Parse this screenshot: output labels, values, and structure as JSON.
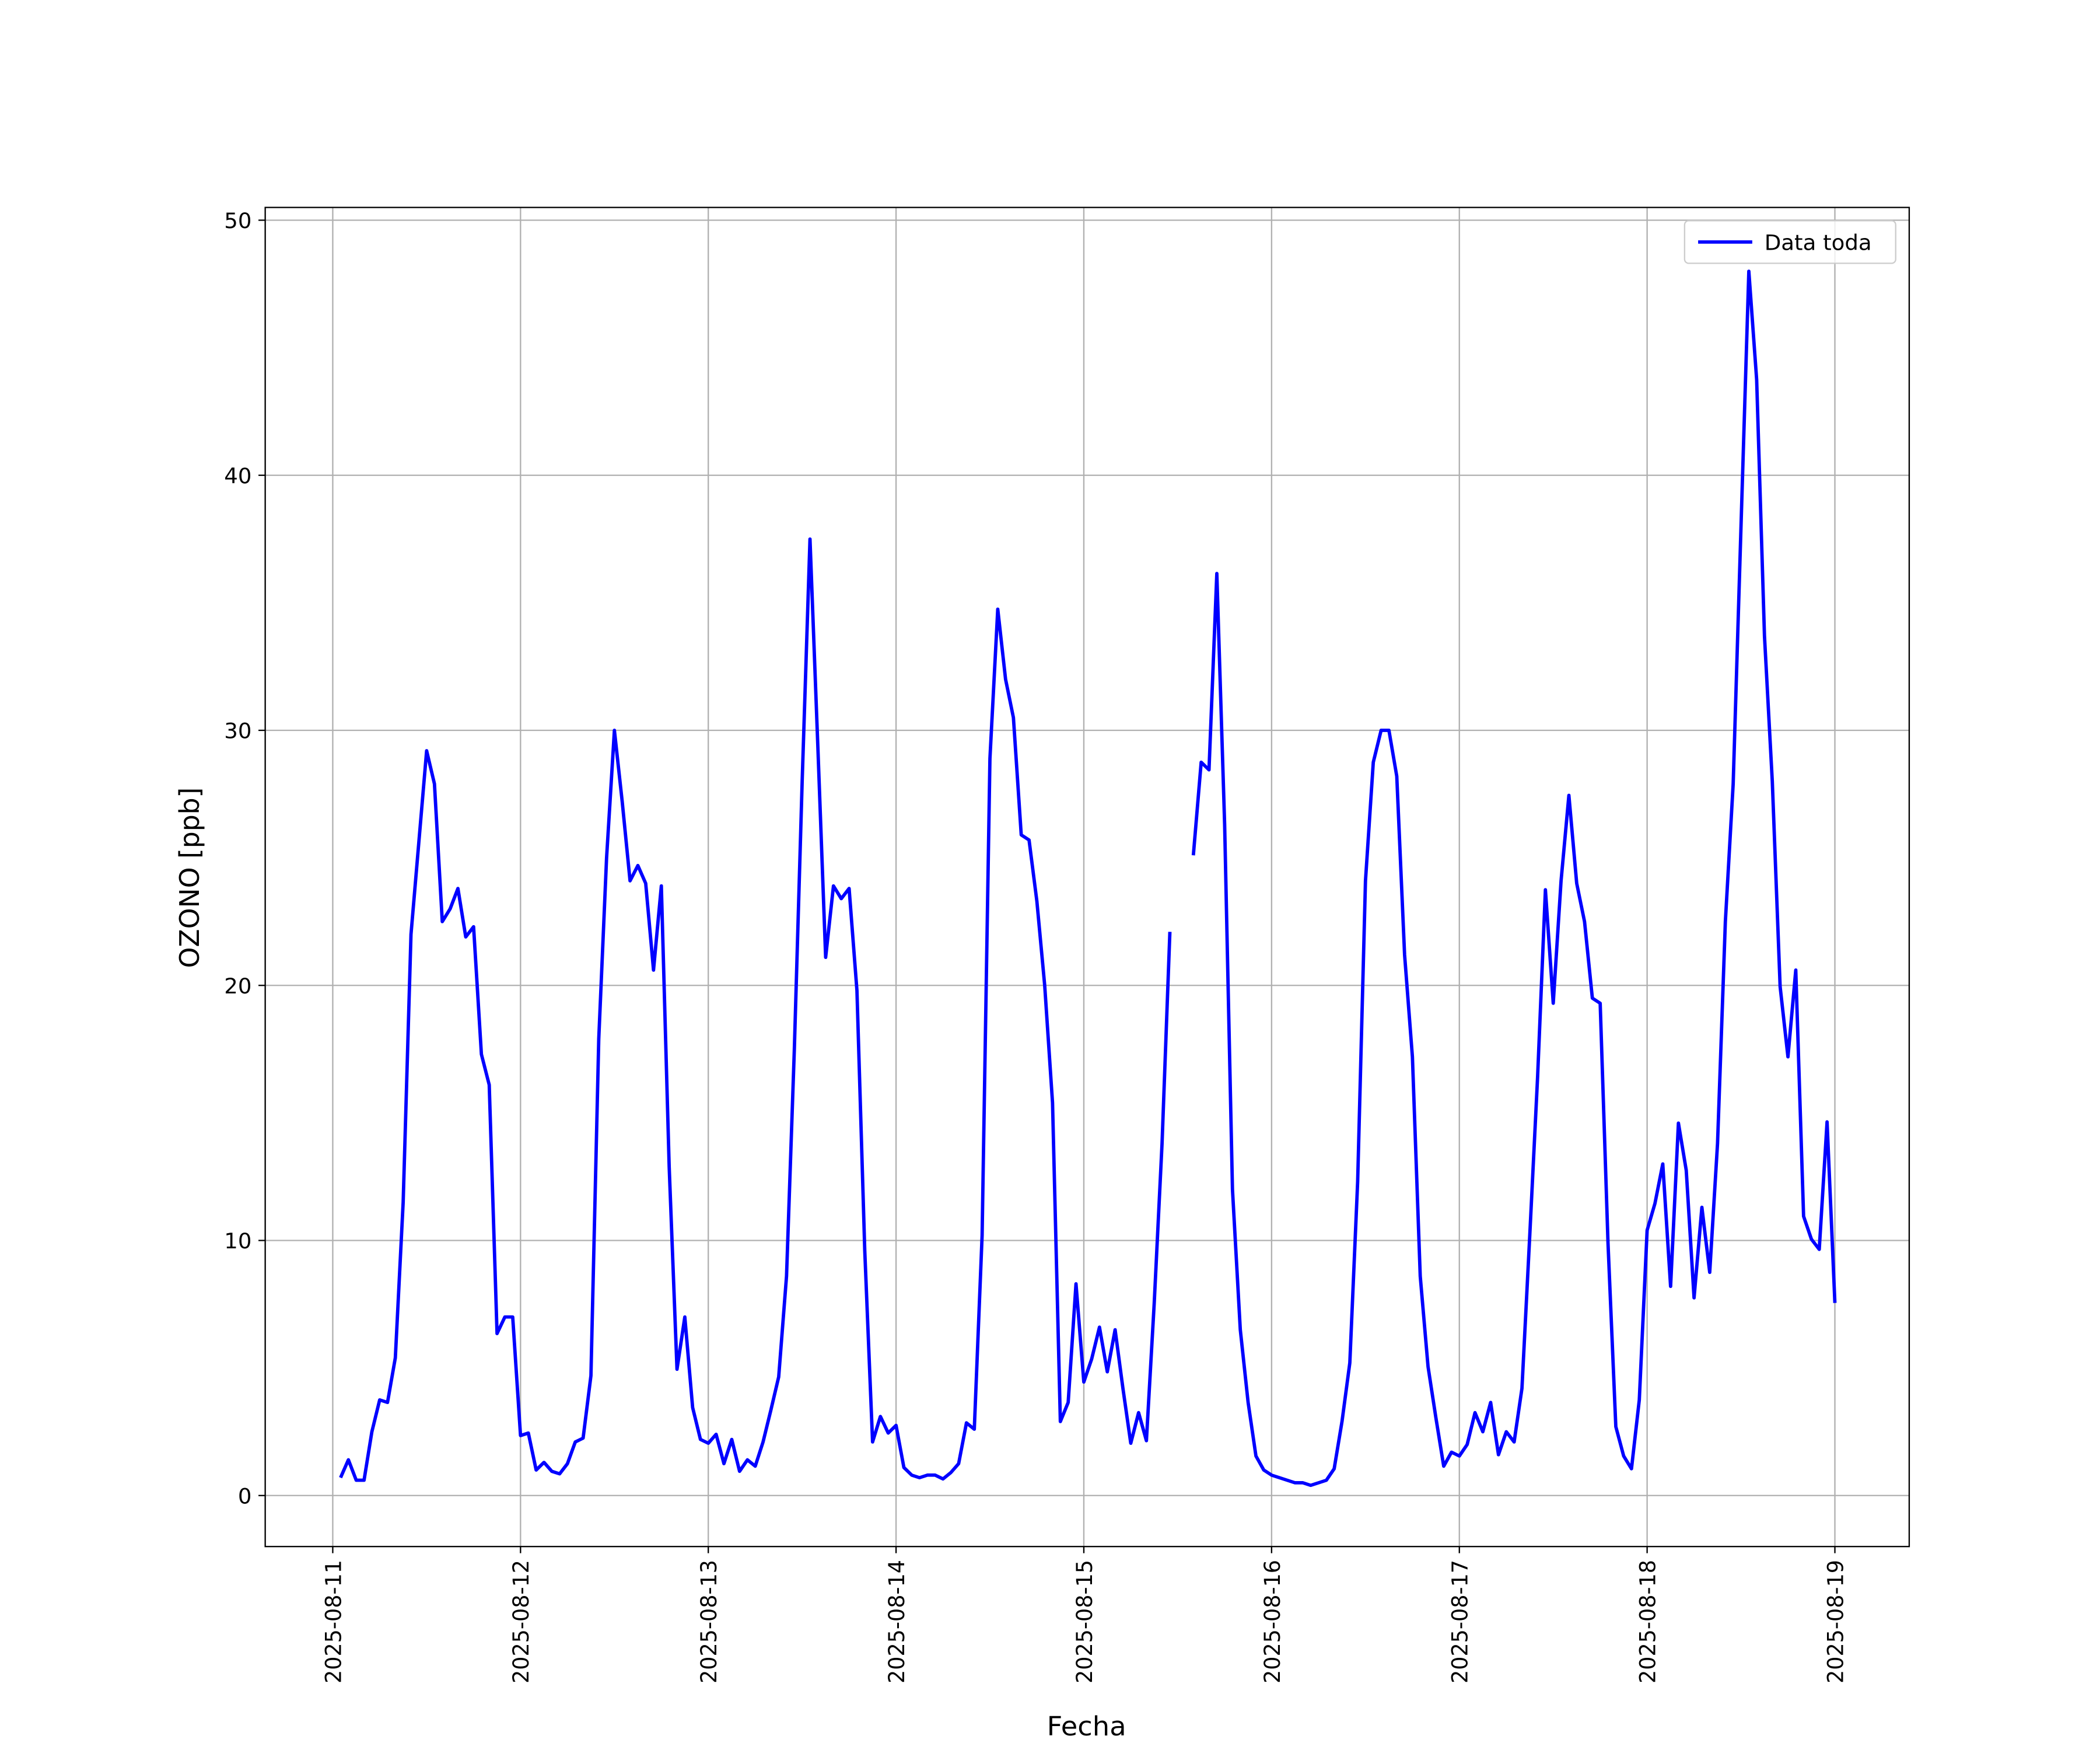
{
  "chart_data": {
    "type": "line",
    "xlabel": "Fecha",
    "ylabel": "OZONO [ppb]",
    "x": [
      "2025-08-11 01:00",
      "2025-08-11 02:00",
      "2025-08-11 03:00",
      "2025-08-11 04:00",
      "2025-08-11 05:00",
      "2025-08-11 06:00",
      "2025-08-11 07:00",
      "2025-08-11 08:00",
      "2025-08-11 09:00",
      "2025-08-11 10:00",
      "2025-08-11 11:00",
      "2025-08-11 12:00",
      "2025-08-11 13:00",
      "2025-08-11 14:00",
      "2025-08-11 15:00",
      "2025-08-11 16:00",
      "2025-08-11 17:00",
      "2025-08-11 18:00",
      "2025-08-11 19:00",
      "2025-08-11 20:00",
      "2025-08-11 21:00",
      "2025-08-11 22:00",
      "2025-08-11 23:00",
      "2025-08-12 00:00",
      "2025-08-12 01:00",
      "2025-08-12 02:00",
      "2025-08-12 03:00",
      "2025-08-12 04:00",
      "2025-08-12 05:00",
      "2025-08-12 06:00",
      "2025-08-12 07:00",
      "2025-08-12 08:00",
      "2025-08-12 09:00",
      "2025-08-12 10:00",
      "2025-08-12 11:00",
      "2025-08-12 12:00",
      "2025-08-12 13:00",
      "2025-08-12 14:00",
      "2025-08-12 15:00",
      "2025-08-12 16:00",
      "2025-08-12 17:00",
      "2025-08-12 18:00",
      "2025-08-12 19:00",
      "2025-08-12 20:00",
      "2025-08-12 21:00",
      "2025-08-12 22:00",
      "2025-08-12 23:00",
      "2025-08-13 00:00",
      "2025-08-13 01:00",
      "2025-08-13 02:00",
      "2025-08-13 03:00",
      "2025-08-13 04:00",
      "2025-08-13 05:00",
      "2025-08-13 06:00",
      "2025-08-13 07:00",
      "2025-08-13 08:00",
      "2025-08-13 09:00",
      "2025-08-13 10:00",
      "2025-08-13 11:00",
      "2025-08-13 12:00",
      "2025-08-13 13:00",
      "2025-08-13 14:00",
      "2025-08-13 15:00",
      "2025-08-13 16:00",
      "2025-08-13 17:00",
      "2025-08-13 18:00",
      "2025-08-13 19:00",
      "2025-08-13 20:00",
      "2025-08-13 21:00",
      "2025-08-13 22:00",
      "2025-08-13 23:00",
      "2025-08-14 00:00",
      "2025-08-14 01:00",
      "2025-08-14 02:00",
      "2025-08-14 03:00",
      "2025-08-14 04:00",
      "2025-08-14 05:00",
      "2025-08-14 06:00",
      "2025-08-14 07:00",
      "2025-08-14 08:00",
      "2025-08-14 09:00",
      "2025-08-14 10:00",
      "2025-08-14 11:00",
      "2025-08-14 12:00",
      "2025-08-14 13:00",
      "2025-08-14 14:00",
      "2025-08-14 15:00",
      "2025-08-14 16:00",
      "2025-08-14 17:00",
      "2025-08-14 18:00",
      "2025-08-14 19:00",
      "2025-08-14 20:00",
      "2025-08-14 21:00",
      "2025-08-14 22:00",
      "2025-08-14 23:00",
      "2025-08-15 00:00",
      "2025-08-15 01:00",
      "2025-08-15 02:00",
      "2025-08-15 03:00",
      "2025-08-15 04:00",
      "2025-08-15 05:00",
      "2025-08-15 06:00",
      "2025-08-15 07:00",
      "2025-08-15 08:00",
      "2025-08-15 09:00",
      "2025-08-15 10:00",
      "2025-08-15 11:00",
      "2025-08-15 12:00",
      "2025-08-15 13:00",
      "2025-08-15 14:00",
      "2025-08-15 15:00",
      "2025-08-15 16:00",
      "2025-08-15 17:00",
      "2025-08-15 18:00",
      "2025-08-15 19:00",
      "2025-08-15 20:00",
      "2025-08-15 21:00",
      "2025-08-15 22:00",
      "2025-08-15 23:00",
      "2025-08-16 00:00",
      "2025-08-16 01:00",
      "2025-08-16 02:00",
      "2025-08-16 03:00",
      "2025-08-16 04:00",
      "2025-08-16 05:00",
      "2025-08-16 06:00",
      "2025-08-16 07:00",
      "2025-08-16 08:00",
      "2025-08-16 09:00",
      "2025-08-16 10:00",
      "2025-08-16 11:00",
      "2025-08-16 12:00",
      "2025-08-16 13:00",
      "2025-08-16 14:00",
      "2025-08-16 15:00",
      "2025-08-16 16:00",
      "2025-08-16 17:00",
      "2025-08-16 18:00",
      "2025-08-16 19:00",
      "2025-08-16 20:00",
      "2025-08-16 21:00",
      "2025-08-16 22:00",
      "2025-08-16 23:00",
      "2025-08-17 00:00",
      "2025-08-17 01:00",
      "2025-08-17 02:00",
      "2025-08-17 03:00",
      "2025-08-17 04:00",
      "2025-08-17 05:00",
      "2025-08-17 06:00",
      "2025-08-17 07:00",
      "2025-08-17 08:00",
      "2025-08-17 09:00",
      "2025-08-17 10:00",
      "2025-08-17 11:00",
      "2025-08-17 12:00",
      "2025-08-17 13:00",
      "2025-08-17 14:00",
      "2025-08-17 15:00",
      "2025-08-17 16:00",
      "2025-08-17 17:00",
      "2025-08-17 18:00",
      "2025-08-17 19:00",
      "2025-08-17 20:00",
      "2025-08-17 21:00",
      "2025-08-17 22:00",
      "2025-08-17 23:00",
      "2025-08-18 00:00",
      "2025-08-18 01:00",
      "2025-08-18 02:00",
      "2025-08-18 03:00",
      "2025-08-18 04:00",
      "2025-08-18 05:00",
      "2025-08-18 06:00",
      "2025-08-18 07:00",
      "2025-08-18 08:00",
      "2025-08-18 09:00",
      "2025-08-18 10:00",
      "2025-08-18 11:00",
      "2025-08-18 12:00",
      "2025-08-18 13:00",
      "2025-08-18 14:00",
      "2025-08-18 15:00",
      "2025-08-18 16:00",
      "2025-08-18 17:00",
      "2025-08-18 18:00",
      "2025-08-18 19:00",
      "2025-08-18 20:00",
      "2025-08-18 21:00",
      "2025-08-18 22:00",
      "2025-08-18 23:00",
      "2025-08-19 00:00"
    ],
    "series": [
      {
        "name": "Data toda",
        "color": "#0000ff",
        "values": [
          0.7,
          1.4,
          0.6,
          0.6,
          2.5,
          3.75,
          3.65,
          5.4,
          11.5,
          22,
          25.6,
          29.2,
          27.9,
          22.5,
          23,
          23.8,
          21.9,
          22.3,
          17.3,
          16.1,
          6.35,
          7,
          7,
          2.35,
          2.45,
          1,
          1.3,
          0.95,
          0.85,
          1.25,
          2.1,
          2.25,
          4.7,
          17.9,
          25,
          30,
          27.2,
          24.1,
          24.7,
          24,
          20.6,
          23.9,
          12.9,
          4.95,
          7,
          3.45,
          2.2,
          2.05,
          2.4,
          1.25,
          2.2,
          0.95,
          1.4,
          1.15,
          2.1,
          3.35,
          4.65,
          8.6,
          17.5,
          28,
          37.5,
          29.4,
          21.1,
          23.9,
          23.4,
          23.8,
          19.8,
          9.6,
          2.1,
          3.1,
          2.45,
          2.75,
          1.1,
          0.8,
          0.7,
          0.8,
          0.8,
          0.65,
          0.9,
          1.25,
          2.85,
          2.6,
          10.2,
          28.9,
          34.75,
          32,
          30.5,
          25.9,
          25.7,
          23.3,
          20,
          15.4,
          2.9,
          3.65,
          8.3,
          4.45,
          5.35,
          6.6,
          4.85,
          6.5,
          4.2,
          2.05,
          3.25,
          2.15,
          7.55,
          13.8,
          22.1,
          null,
          null,
          25.1,
          28.75,
          28.45,
          36.15,
          26.3,
          12,
          6.5,
          3.65,
          1.55,
          1,
          0.8,
          0.7,
          0.6,
          0.5,
          0.5,
          0.4,
          0.5,
          0.6,
          1.05,
          2.9,
          5.2,
          12.3,
          24.1,
          28.75,
          30,
          30,
          28.2,
          21.2,
          17.2,
          8.6,
          5.05,
          3.05,
          1.15,
          1.7,
          1.55,
          2,
          3.25,
          2.5,
          3.65,
          1.6,
          2.5,
          2.1,
          4.2,
          10.2,
          16.4,
          23.75,
          19.3,
          24.1,
          27.45,
          24,
          22.5,
          19.5,
          19.3,
          9.9,
          2.7,
          1.55,
          1.05,
          3.75,
          10.4,
          11.45,
          13,
          8.2,
          14.6,
          12.75,
          7.75,
          11.3,
          8.75,
          13.8,
          22.5,
          27.9,
          38,
          48,
          43.75,
          33.7,
          28,
          19.95,
          17.2,
          20.6,
          10.95,
          10.05,
          9.65,
          14.65,
          7.55
        ]
      }
    ],
    "xlim": [
      "2025-08-10 15:22",
      "2025-08-19 09:30"
    ],
    "xticks": [
      "2025-08-11",
      "2025-08-12",
      "2025-08-13",
      "2025-08-14",
      "2025-08-15",
      "2025-08-16",
      "2025-08-17",
      "2025-08-18",
      "2025-08-19"
    ],
    "ylim": [
      -2,
      50.5
    ],
    "yticks": [
      0,
      10,
      20,
      30,
      40,
      50
    ],
    "grid": true,
    "legend": "upper right"
  }
}
